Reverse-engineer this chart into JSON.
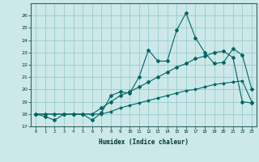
{
  "xlabel": "Humidex (Indice chaleur)",
  "bg_color": "#cce8e8",
  "grid_color": "#99cccc",
  "line_color": "#006666",
  "x_values": [
    0,
    1,
    2,
    3,
    4,
    5,
    6,
    7,
    8,
    9,
    10,
    11,
    12,
    13,
    14,
    15,
    16,
    17,
    18,
    19,
    20,
    21,
    22,
    23
  ],
  "series1": [
    18,
    17.8,
    17.5,
    18.0,
    18.0,
    18.0,
    17.5,
    18.1,
    19.5,
    19.8,
    19.7,
    21.0,
    23.2,
    22.3,
    22.3,
    24.8,
    26.2,
    24.2,
    23.0,
    22.1,
    22.2,
    23.3,
    22.8,
    20.0
  ],
  "series2": [
    18,
    18,
    18,
    18,
    18,
    18,
    18,
    18.5,
    19.0,
    19.5,
    19.8,
    20.2,
    20.6,
    21.0,
    21.4,
    21.8,
    22.1,
    22.5,
    22.7,
    23.0,
    23.1,
    22.6,
    19.0,
    18.9
  ],
  "series3": [
    18,
    18,
    18,
    18,
    18,
    18,
    18,
    18,
    18.2,
    18.5,
    18.7,
    18.9,
    19.1,
    19.3,
    19.5,
    19.7,
    19.9,
    20.0,
    20.2,
    20.4,
    20.5,
    20.6,
    20.7,
    19.0
  ],
  "ylim": [
    17,
    27
  ],
  "xlim": [
    -0.5,
    23.5
  ],
  "yticks": [
    17,
    18,
    19,
    20,
    21,
    22,
    23,
    24,
    25,
    26
  ],
  "xticks": [
    0,
    1,
    2,
    3,
    4,
    5,
    6,
    7,
    8,
    9,
    10,
    11,
    12,
    13,
    14,
    15,
    16,
    17,
    18,
    19,
    20,
    21,
    22,
    23
  ],
  "xtick_labels": [
    "0",
    "1",
    "2",
    "3",
    "4",
    "5",
    "6",
    "7",
    "8",
    "9",
    "10",
    "11",
    "12",
    "13",
    "14",
    "15",
    "16",
    "17",
    "18",
    "19",
    "20",
    "21",
    "22",
    "23"
  ]
}
